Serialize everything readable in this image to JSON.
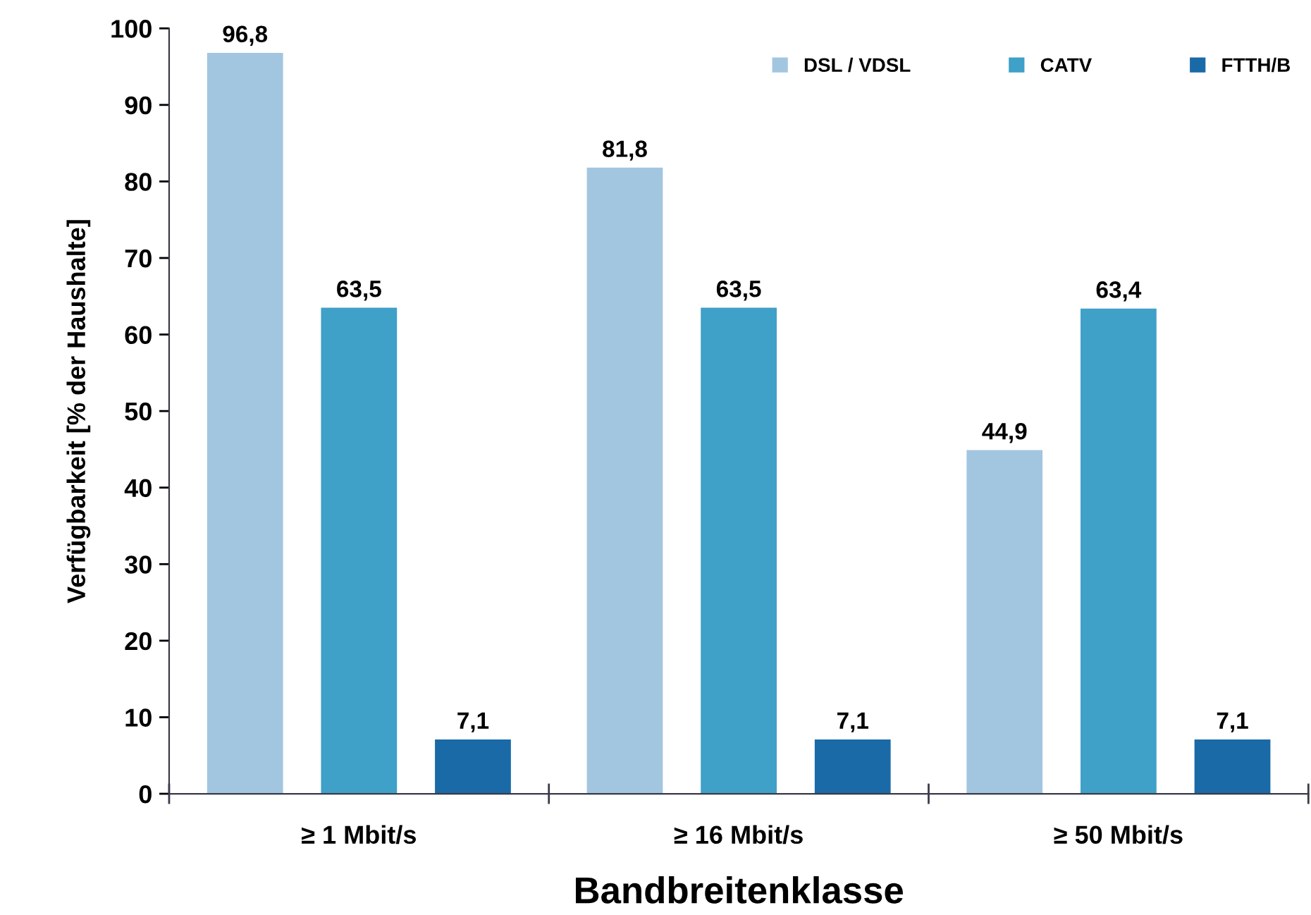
{
  "chart_data": {
    "type": "bar",
    "xlabel": "Bandbreitenklasse",
    "ylabel": "Verfügbarkeit [% der Haushalte]",
    "categories": [
      "≥ 1 Mbit/s",
      "≥ 16 Mbit/s",
      "≥ 50 Mbit/s"
    ],
    "series": [
      {
        "name": "DSL / VDSL",
        "color": "#a3c6e0",
        "values": [
          96.8,
          81.8,
          44.9
        ],
        "value_labels": [
          "96,8",
          "81,8",
          "44,9"
        ]
      },
      {
        "name": "CATV",
        "color": "#3fa0c8",
        "values": [
          63.5,
          63.5,
          63.4
        ],
        "value_labels": [
          "63,5",
          "63,5",
          "63,4"
        ]
      },
      {
        "name": "FTTH/B",
        "color": "#1a6aa8",
        "values": [
          7.1,
          7.1,
          7.1
        ],
        "value_labels": [
          "7,1",
          "7,1",
          "7,1"
        ]
      }
    ],
    "ylim": [
      0,
      100
    ],
    "yticks": [
      0,
      10,
      20,
      30,
      40,
      50,
      60,
      70,
      80,
      90,
      100
    ],
    "legend": "top right",
    "grid": false
  }
}
